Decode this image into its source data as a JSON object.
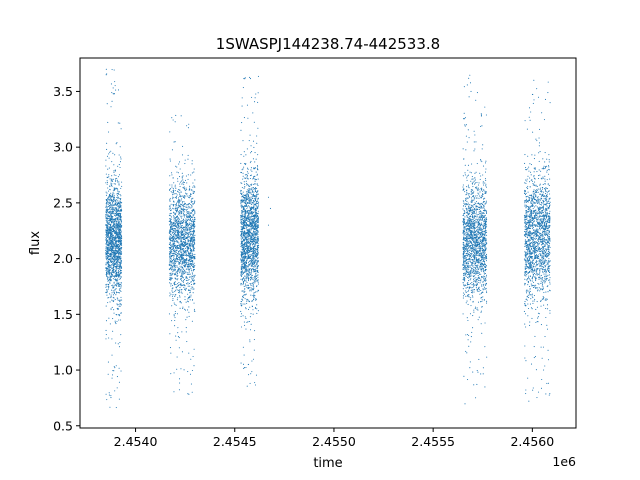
{
  "chart_data": {
    "type": "scatter",
    "title": "1SWASPJ144238.74-442533.8",
    "xlabel": "time",
    "ylabel": "flux",
    "x_offset_label": "1e6",
    "xlim": [
      2.45372,
      2.45622
    ],
    "ylim": [
      0.48,
      3.8
    ],
    "x_ticks": [
      2.454,
      2.4545,
      2.455,
      2.4555,
      2.456
    ],
    "x_tick_labels": [
      "2.4540",
      "2.4545",
      "2.4550",
      "2.4555",
      "2.4560"
    ],
    "y_ticks": [
      0.5,
      1.0,
      1.5,
      2.0,
      2.5,
      3.0,
      3.5
    ],
    "y_tick_labels": [
      "0.5",
      "1.0",
      "1.5",
      "2.0",
      "2.5",
      "3.0",
      "3.5"
    ],
    "grid": false,
    "marker_color": "#1f77b4",
    "series": [
      {
        "clusters": [
          {
            "x_range": [
              2.45385,
              2.45393
            ],
            "y_center": 2.15,
            "y_core": [
              1.85,
              2.5
            ],
            "y_extent": [
              0.65,
              3.7
            ]
          },
          {
            "x_range": [
              2.45417,
              2.4543
            ],
            "y_center": 2.15,
            "y_core": [
              1.85,
              2.5
            ],
            "y_extent": [
              0.78,
              3.3
            ]
          },
          {
            "x_range": [
              2.45453,
              2.45462
            ],
            "y_center": 2.2,
            "y_core": [
              1.85,
              2.55
            ],
            "y_extent": [
              0.85,
              3.65
            ]
          },
          {
            "x_range": [
              2.45565,
              2.45577
            ],
            "y_center": 2.15,
            "y_core": [
              1.85,
              2.5
            ],
            "y_extent": [
              0.62,
              3.7
            ]
          },
          {
            "x_range": [
              2.45596,
              2.45609
            ],
            "y_center": 2.2,
            "y_core": [
              1.85,
              2.55
            ],
            "y_extent": [
              0.67,
              3.6
            ]
          }
        ],
        "sparse_points": [
          [
            2.45467,
            2.55
          ],
          [
            2.45468,
            2.45
          ],
          [
            2.45467,
            2.3
          ]
        ]
      }
    ]
  }
}
